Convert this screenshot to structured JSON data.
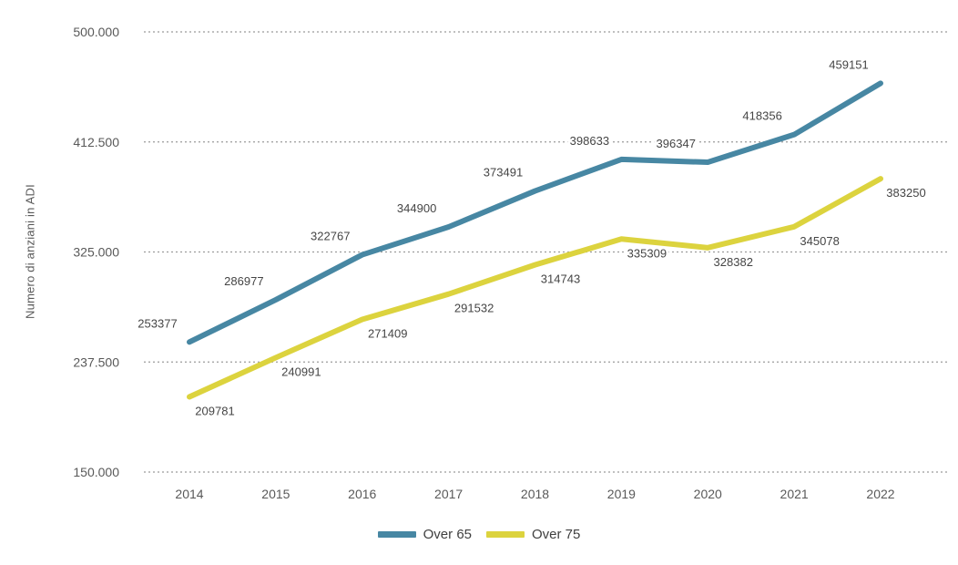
{
  "chart_data": {
    "type": "line",
    "title": "",
    "xlabel": "",
    "ylabel": "Numero di anziani in ADI",
    "x": [
      "2014",
      "2015",
      "2016",
      "2017",
      "2018",
      "2019",
      "2020",
      "2021",
      "2022"
    ],
    "ylim": [
      150000,
      500000
    ],
    "yticks": [
      {
        "value": 150000,
        "label": "150.000"
      },
      {
        "value": 237500,
        "label": "237.500"
      },
      {
        "value": 325000,
        "label": "325.000"
      },
      {
        "value": 412500,
        "label": "412.500"
      },
      {
        "value": 500000,
        "label": "500.000"
      }
    ],
    "grid": "horizontal-dashed",
    "legend_position": "bottom-center",
    "series": [
      {
        "name": "Over 65",
        "color": "#4787a3",
        "label_position": "above",
        "values": [
          253377,
          286977,
          322767,
          344900,
          373491,
          398633,
          396347,
          418356,
          459151
        ]
      },
      {
        "name": "Over 75",
        "color": "#dcd33e",
        "label_position": "below",
        "values": [
          209781,
          240991,
          271409,
          291532,
          314743,
          335309,
          328382,
          345078,
          383250
        ]
      }
    ],
    "colors": {
      "grid": "#9b9b9b",
      "axis_text": "#595959",
      "data_label_text": "#454545",
      "background": "#ffffff"
    }
  }
}
